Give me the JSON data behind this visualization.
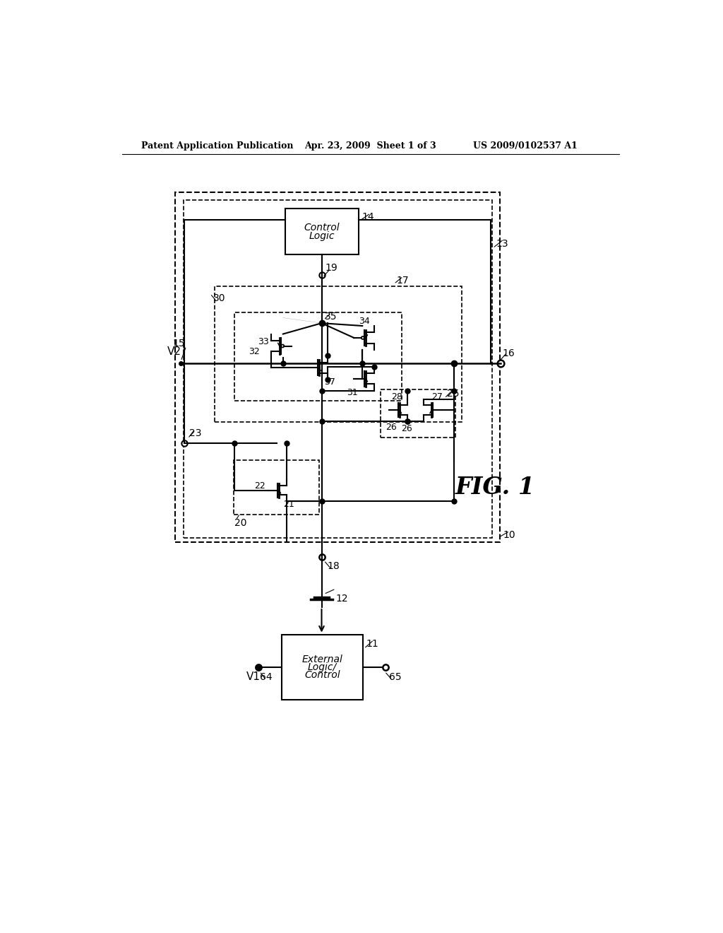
{
  "background_color": "#ffffff",
  "header_left": "Patent Application Publication",
  "header_center": "Apr. 23, 2009  Sheet 1 of 3",
  "header_right": "US 2009/0102537 A1",
  "fig_label": "FIG. 1"
}
